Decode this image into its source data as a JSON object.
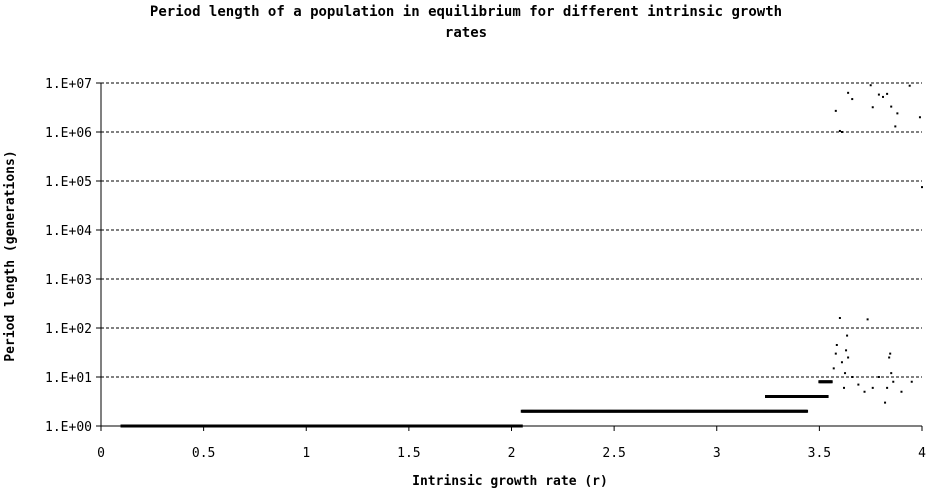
{
  "chart_data": {
    "type": "scatter",
    "title_lines": [
      "Period length of a population in equilibrium for different intrinsic growth",
      "rates"
    ],
    "xlabel": "Intrinsic growth rate (r)",
    "ylabel": "Period length (generations)",
    "xlim": [
      0,
      4
    ],
    "ylim": [
      1,
      10000000
    ],
    "yscale": "log",
    "grid": "horizontal dashed",
    "x_ticks": [
      "0",
      "0.5",
      "1",
      "1.5",
      "2",
      "2.5",
      "3",
      "3.5",
      "4"
    ],
    "y_ticks": [
      "1.E+00",
      "1.E+01",
      "1.E+02",
      "1.E+03",
      "1.E+04",
      "1.E+05",
      "1.E+06",
      "1.E+07"
    ],
    "marker_color": "#000000",
    "dense_segments": [
      {
        "r_start": 0.1,
        "r_end": 2.05,
        "period": 1
      },
      {
        "r_start": 2.05,
        "r_end": 3.44,
        "period": 2
      },
      {
        "r_start": 3.24,
        "r_end": 3.54,
        "period": 4
      },
      {
        "r_start": 3.5,
        "r_end": 3.56,
        "period": 8
      }
    ],
    "points": [
      {
        "x": 3.57,
        "y": 15
      },
      {
        "x": 3.58,
        "y": 30
      },
      {
        "x": 3.585,
        "y": 45
      },
      {
        "x": 3.6,
        "y": 160
      },
      {
        "x": 3.61,
        "y": 20
      },
      {
        "x": 3.62,
        "y": 6
      },
      {
        "x": 3.625,
        "y": 12
      },
      {
        "x": 3.63,
        "y": 35
      },
      {
        "x": 3.635,
        "y": 70
      },
      {
        "x": 3.64,
        "y": 25
      },
      {
        "x": 3.66,
        "y": 10
      },
      {
        "x": 3.69,
        "y": 7
      },
      {
        "x": 3.72,
        "y": 5
      },
      {
        "x": 3.735,
        "y": 150
      },
      {
        "x": 3.76,
        "y": 6
      },
      {
        "x": 3.79,
        "y": 10
      },
      {
        "x": 3.82,
        "y": 3
      },
      {
        "x": 3.83,
        "y": 6
      },
      {
        "x": 3.84,
        "y": 25
      },
      {
        "x": 3.845,
        "y": 30
      },
      {
        "x": 3.85,
        "y": 12
      },
      {
        "x": 3.86,
        "y": 8
      },
      {
        "x": 3.9,
        "y": 5
      },
      {
        "x": 3.95,
        "y": 8
      },
      {
        "x": 3.58,
        "y": 2700000
      },
      {
        "x": 3.6,
        "y": 1050000
      },
      {
        "x": 3.61,
        "y": 1000000
      },
      {
        "x": 3.64,
        "y": 6300000
      },
      {
        "x": 3.66,
        "y": 4700000
      },
      {
        "x": 3.75,
        "y": 9000000
      },
      {
        "x": 3.76,
        "y": 3200000
      },
      {
        "x": 3.79,
        "y": 5800000
      },
      {
        "x": 3.81,
        "y": 5200000
      },
      {
        "x": 3.83,
        "y": 6000000
      },
      {
        "x": 3.85,
        "y": 3300000
      },
      {
        "x": 3.87,
        "y": 1300000
      },
      {
        "x": 3.88,
        "y": 2400000
      },
      {
        "x": 3.94,
        "y": 8800000
      },
      {
        "x": 3.99,
        "y": 2000000
      },
      {
        "x": 4.0,
        "y": 75000
      }
    ]
  }
}
